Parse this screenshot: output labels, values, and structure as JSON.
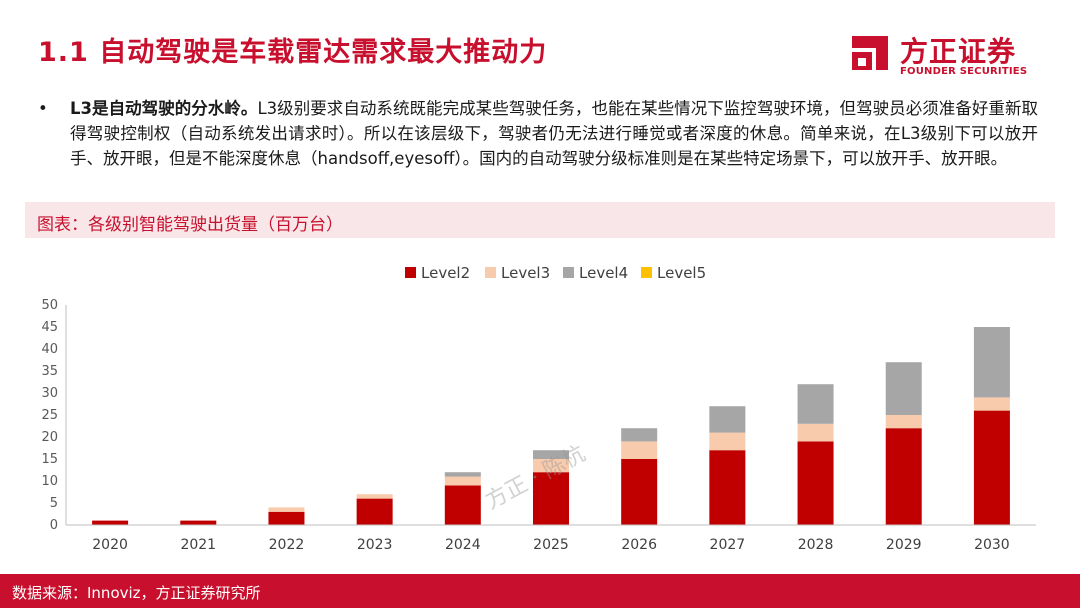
{
  "slide": {
    "title": "1.1  自动驾驶是车载雷达需求最大推动力",
    "bullet_dot": "•",
    "bullet_bold": "L3是自动驾驶的分水岭。",
    "bullet_text": "L3级别要求自动系统既能完成某些驾驶任务，也能在某些情况下监控驾驶环境，但驾驶员必须准备好重新取得驾驶控制权（自动系统发出请求时）。所以在该层级下，驾驶者仍无法进行睡觉或者深度的休息。简单来说，在L3级别下可以放开手、放开眼，但是不能深度休息（handsoff,eyesoff）。国内的自动驾驶分级标准则是在某些特定场景下，可以放开手、放开眼。",
    "caption": "图表：各级别智能驾驶出货量（百万台）",
    "source": "数据来源：Innoviz，方正证券研究所",
    "watermark": "方正 · 陈杭"
  },
  "logo": {
    "name_cn": "方正证券",
    "name_en": "FOUNDER SECURITIES",
    "color": "#c8102e"
  },
  "colors": {
    "brand": "#c8102e",
    "caption_bg": "#f8e6e8"
  },
  "chart_data": {
    "type": "bar",
    "stacked": true,
    "categories": [
      "2020",
      "2021",
      "2022",
      "2023",
      "2024",
      "2025",
      "2026",
      "2027",
      "2028",
      "2029",
      "2030"
    ],
    "series": [
      {
        "name": "Level2",
        "color": "#c00000",
        "values": [
          1,
          1,
          3,
          6,
          9,
          12,
          15,
          17,
          19,
          22,
          26
        ]
      },
      {
        "name": "Level3",
        "color": "#f8cbad",
        "values": [
          0,
          0,
          1,
          1,
          2,
          3,
          4,
          4,
          4,
          3,
          3
        ]
      },
      {
        "name": "Level4",
        "color": "#a6a6a6",
        "values": [
          0,
          0,
          0,
          0,
          1,
          2,
          3,
          6,
          9,
          12,
          16
        ]
      },
      {
        "name": "Level5",
        "color": "#ffc000",
        "values": [
          0,
          0,
          0,
          0,
          0,
          0,
          0,
          0,
          0,
          0,
          0
        ]
      }
    ],
    "ylim": [
      0,
      50
    ],
    "yticks": [
      0,
      5,
      10,
      15,
      20,
      25,
      30,
      35,
      40,
      45,
      50
    ],
    "legend_position": "top",
    "grid": false
  }
}
